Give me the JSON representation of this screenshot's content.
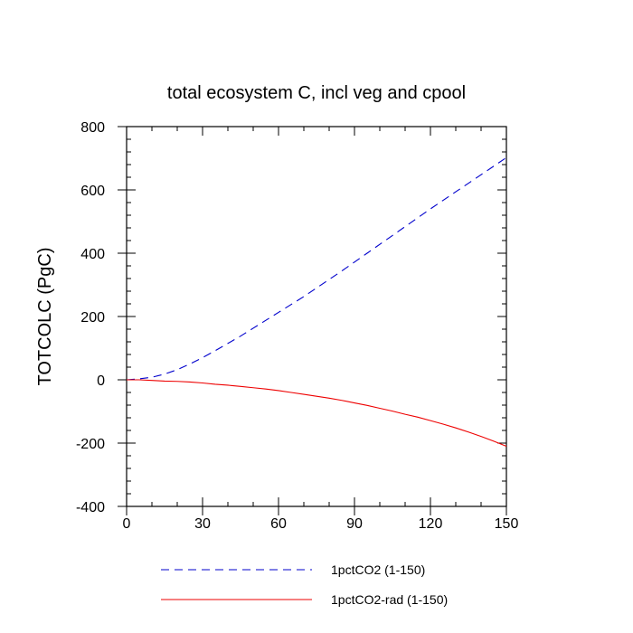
{
  "chart_data": {
    "type": "line",
    "title": "total ecosystem C, incl veg and cpool",
    "xlabel": "",
    "ylabel": "TOTCOLC  (PgC)",
    "xlim": [
      0,
      150
    ],
    "ylim": [
      -400,
      800
    ],
    "xticks": [
      0,
      30,
      60,
      90,
      120,
      150
    ],
    "yticks": [
      -400,
      -200,
      0,
      200,
      400,
      600,
      800
    ],
    "xtick_labels": [
      "0",
      "30",
      "60",
      "90",
      "120",
      "150"
    ],
    "ytick_labels": [
      "-400",
      "-200",
      "0",
      "200",
      "400",
      "600",
      "800"
    ],
    "grid": false,
    "legend_position": "bottom",
    "series": [
      {
        "name": "1pctCO2 (1-150)",
        "color": "#0000cc",
        "dash": "dashed",
        "x": [
          0,
          5,
          10,
          15,
          20,
          25,
          30,
          35,
          40,
          45,
          50,
          55,
          60,
          65,
          70,
          75,
          80,
          85,
          90,
          95,
          100,
          105,
          110,
          115,
          120,
          125,
          130,
          135,
          140,
          145,
          150
        ],
        "y": [
          0,
          3,
          8,
          18,
          32,
          50,
          70,
          92,
          115,
          138,
          163,
          188,
          213,
          238,
          263,
          290,
          317,
          344,
          372,
          400,
          428,
          456,
          484,
          512,
          540,
          567,
          594,
          621,
          648,
          675,
          702
        ]
      },
      {
        "name": "1pctCO2-rad (1-150)",
        "color": "#ee0000",
        "dash": "solid",
        "x": [
          0,
          5,
          10,
          15,
          20,
          25,
          30,
          35,
          40,
          45,
          50,
          55,
          60,
          65,
          70,
          75,
          80,
          85,
          90,
          95,
          100,
          105,
          110,
          115,
          120,
          125,
          130,
          135,
          140,
          145,
          150
        ],
        "y": [
          0,
          0,
          -2,
          -4,
          -5,
          -7,
          -10,
          -14,
          -17,
          -21,
          -25,
          -29,
          -34,
          -40,
          -46,
          -52,
          -58,
          -65,
          -73,
          -81,
          -90,
          -99,
          -109,
          -118,
          -129,
          -140,
          -152,
          -165,
          -179,
          -194,
          -210
        ]
      }
    ]
  }
}
